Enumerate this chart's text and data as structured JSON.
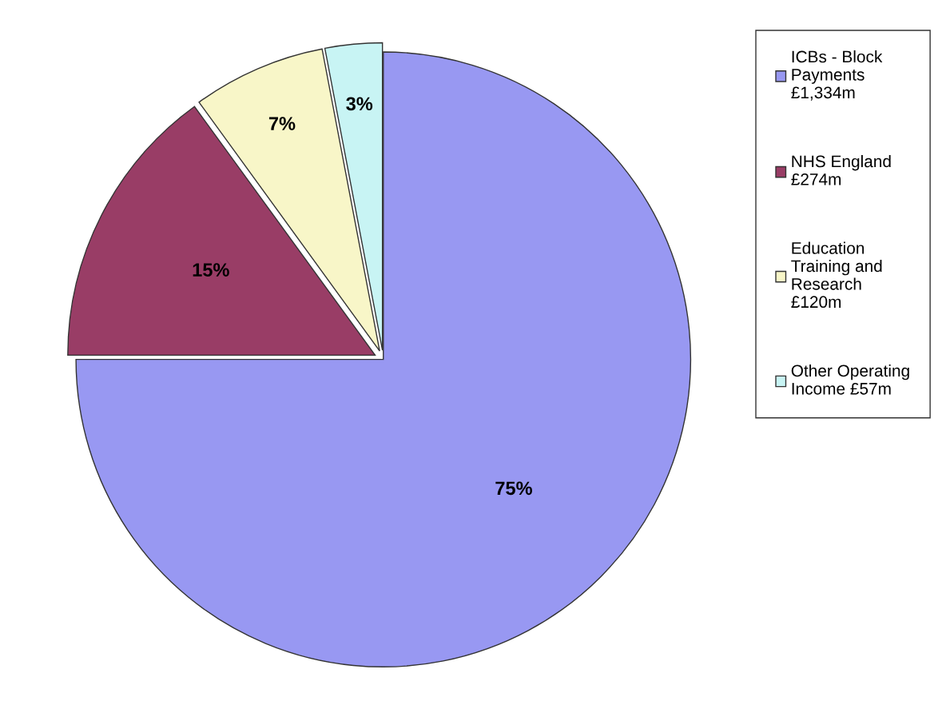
{
  "chart_data": {
    "type": "pie",
    "categories": [
      "ICBs - Block\nPayments\n£1,334m",
      "NHS England\n£274m",
      "Education\nTraining and\nResearch\n£120m",
      "Other Operating\nIncome £57m"
    ],
    "values": [
      75,
      15,
      7,
      3
    ],
    "value_labels": [
      "75%",
      "15%",
      "7%",
      "3%"
    ],
    "colors": [
      "#9898f2",
      "#993d66",
      "#f8f6c8",
      "#c8f4f4"
    ],
    "legend": "right"
  }
}
